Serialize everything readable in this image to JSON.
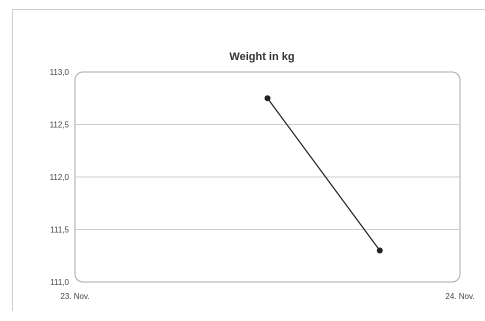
{
  "chart_data": {
    "type": "line",
    "title": "Weight in kg",
    "xlabel": "",
    "ylabel": "",
    "x_tick_labels": [
      "23. Nov.",
      "24. Nov."
    ],
    "y_ticks": [
      111.0,
      111.5,
      112.0,
      112.5,
      113.0
    ],
    "y_tick_labels": [
      "111,0",
      "111,5",
      "112,0",
      "112,5",
      "113,0"
    ],
    "ylim": [
      111.0,
      113.0
    ],
    "x_domain": [
      "23. Nov.",
      "24. Nov."
    ],
    "series": [
      {
        "points": [
          {
            "x": "23. Nov. 12:00",
            "y": 112.75
          },
          {
            "x": "23. Nov. 19:00",
            "y": 111.3
          }
        ]
      }
    ],
    "grid": true,
    "colors": {
      "line": "#222222",
      "grid": "#cccccc",
      "plot_border": "#aaaaaa"
    }
  }
}
